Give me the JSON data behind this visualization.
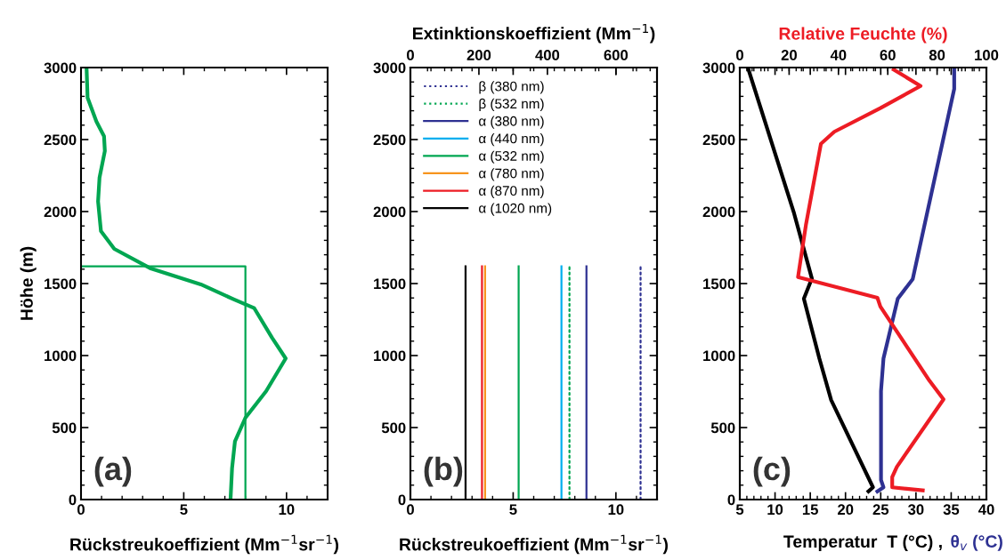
{
  "chart_data": [
    {
      "type": "line",
      "xlabel": "Rückstreukoeffizient (Mm$^{−1}$sr$^{−1}$)",
      "ylabel": "Höhe (m)",
      "xlim": [
        0,
        12
      ],
      "xticks": [
        0,
        5,
        10
      ],
      "ylim": [
        0,
        3000
      ],
      "yticks": [
        0,
        500,
        1000,
        1500,
        2000,
        2500,
        3000
      ],
      "annotations": [
        "(a)"
      ],
      "series": [
        {
          "color": "#00a651",
          "x": [
            0.27,
            0.32,
            0.75,
            1.12,
            1.16,
            0.9,
            0.83,
            0.97,
            1.62,
            3.36,
            5.83,
            7.42,
            8.43,
            9.3,
            9.96,
            9.01,
            8.0,
            7.49,
            7.35,
            7.28
          ],
          "values": [
            3000,
            2790,
            2625,
            2523,
            2420,
            2235,
            2070,
            1864,
            1741,
            1607,
            1494,
            1391,
            1329,
            1123,
            980,
            753,
            568,
            403,
            218,
            12
          ]
        },
        {
          "color": "#00a651",
          "x": [
            0,
            8.0,
            8.0
          ],
          "values": [
            1620,
            1620,
            0
          ]
        }
      ]
    },
    {
      "type": "line",
      "xlabel": "Rückstreukoeffizient (Mm$^{−1}$sr$^{−1}$)",
      "x2label": "Extinktionskoeffizient (Mm$^{−1}$)",
      "xlim": [
        0,
        12
      ],
      "xticks": [
        0,
        5,
        10
      ],
      "x2lim": [
        0,
        720
      ],
      "x2ticks": [
        0,
        200,
        400,
        600
      ],
      "ylim": [
        0,
        3000
      ],
      "yticks": [
        0,
        500,
        1000,
        1500,
        2000,
        2500,
        3000
      ],
      "legend": "top left",
      "annotations": [
        "(b)"
      ],
      "series": [
        {
          "name": "β (380 nm)",
          "color": "#2e3192",
          "line_style": "dotted",
          "x": [
            11.2,
            11.2
          ],
          "values": [
            0,
            1620
          ]
        },
        {
          "name": "β (532 nm)",
          "color": "#00a651",
          "line_style": "dotted",
          "x": [
            7.74,
            7.74
          ],
          "values": [
            0,
            1620
          ]
        },
        {
          "name": "α (380 nm)",
          "color": "#2e3192",
          "axis": "x2",
          "x": [
            514,
            514
          ],
          "values": [
            0,
            1620
          ]
        },
        {
          "name": "α (440 nm)",
          "color": "#00aeef",
          "axis": "x2",
          "x": [
            441,
            441
          ],
          "values": [
            0,
            1620
          ]
        },
        {
          "name": "α (532 nm)",
          "color": "#00a651",
          "axis": "x2",
          "x": [
            316,
            316
          ],
          "values": [
            0,
            1620
          ]
        },
        {
          "name": "α (780 nm)",
          "color": "#f7941d",
          "axis": "x2",
          "x": [
            218,
            218
          ],
          "values": [
            0,
            1620
          ]
        },
        {
          "name": "α (870 nm)",
          "color": "#ed1c24",
          "axis": "x2",
          "x": [
            209,
            209
          ],
          "values": [
            0,
            1620
          ]
        },
        {
          "name": "α (1020 nm)",
          "color": "#000000",
          "axis": "x2",
          "x": [
            161,
            161
          ],
          "values": [
            0,
            1620
          ]
        }
      ]
    },
    {
      "type": "line",
      "xlabel": "Temperatur  T (°C) ,",
      "x2label": "Relative Feuchte (%)",
      "xlim": [
        5,
        40
      ],
      "xticks": [
        5,
        10,
        15,
        20,
        25,
        30,
        35,
        40
      ],
      "x2lim": [
        0,
        100
      ],
      "x2ticks": [
        0,
        20,
        40,
        60,
        80,
        100
      ],
      "ylim": [
        0,
        3000
      ],
      "yticks": [
        0,
        500,
        1000,
        1500,
        2000,
        2500,
        3000
      ],
      "annotations": [
        "(c)",
        "θ$_{v}$ (°C)"
      ],
      "series": [
        {
          "color": "#000000",
          "x": [
            6.14,
            12.7,
            15.23,
            14.09,
            16.29,
            17.97,
            23.9,
            23.26
          ],
          "values": [
            3000,
            1988,
            1535,
            1395,
            980,
            691,
            85,
            57
          ]
        },
        {
          "color": "#2e3192",
          "x": [
            35.43,
            35.43,
            29.54,
            27.42,
            25.39,
            25.04,
            25.04,
            25.39,
            24.53
          ],
          "values": [
            3000,
            2852,
            1531,
            1395,
            980,
            753,
            136,
            85,
            57
          ]
        },
        {
          "color": "#ed1c24",
          "axis": "x2",
          "x": [
            62.4,
            73.3,
            57.0,
            38.3,
            32.9,
            26.8,
            23.6,
            55.8,
            57.0,
            76.9,
            82.6,
            63.7,
            61.8,
            61.8,
            74.2
          ],
          "values": [
            2986,
            2872,
            2718,
            2554,
            2471,
            1906,
            1545,
            1401,
            1340,
            825,
            696,
            228,
            156,
            85,
            64
          ]
        }
      ]
    }
  ]
}
